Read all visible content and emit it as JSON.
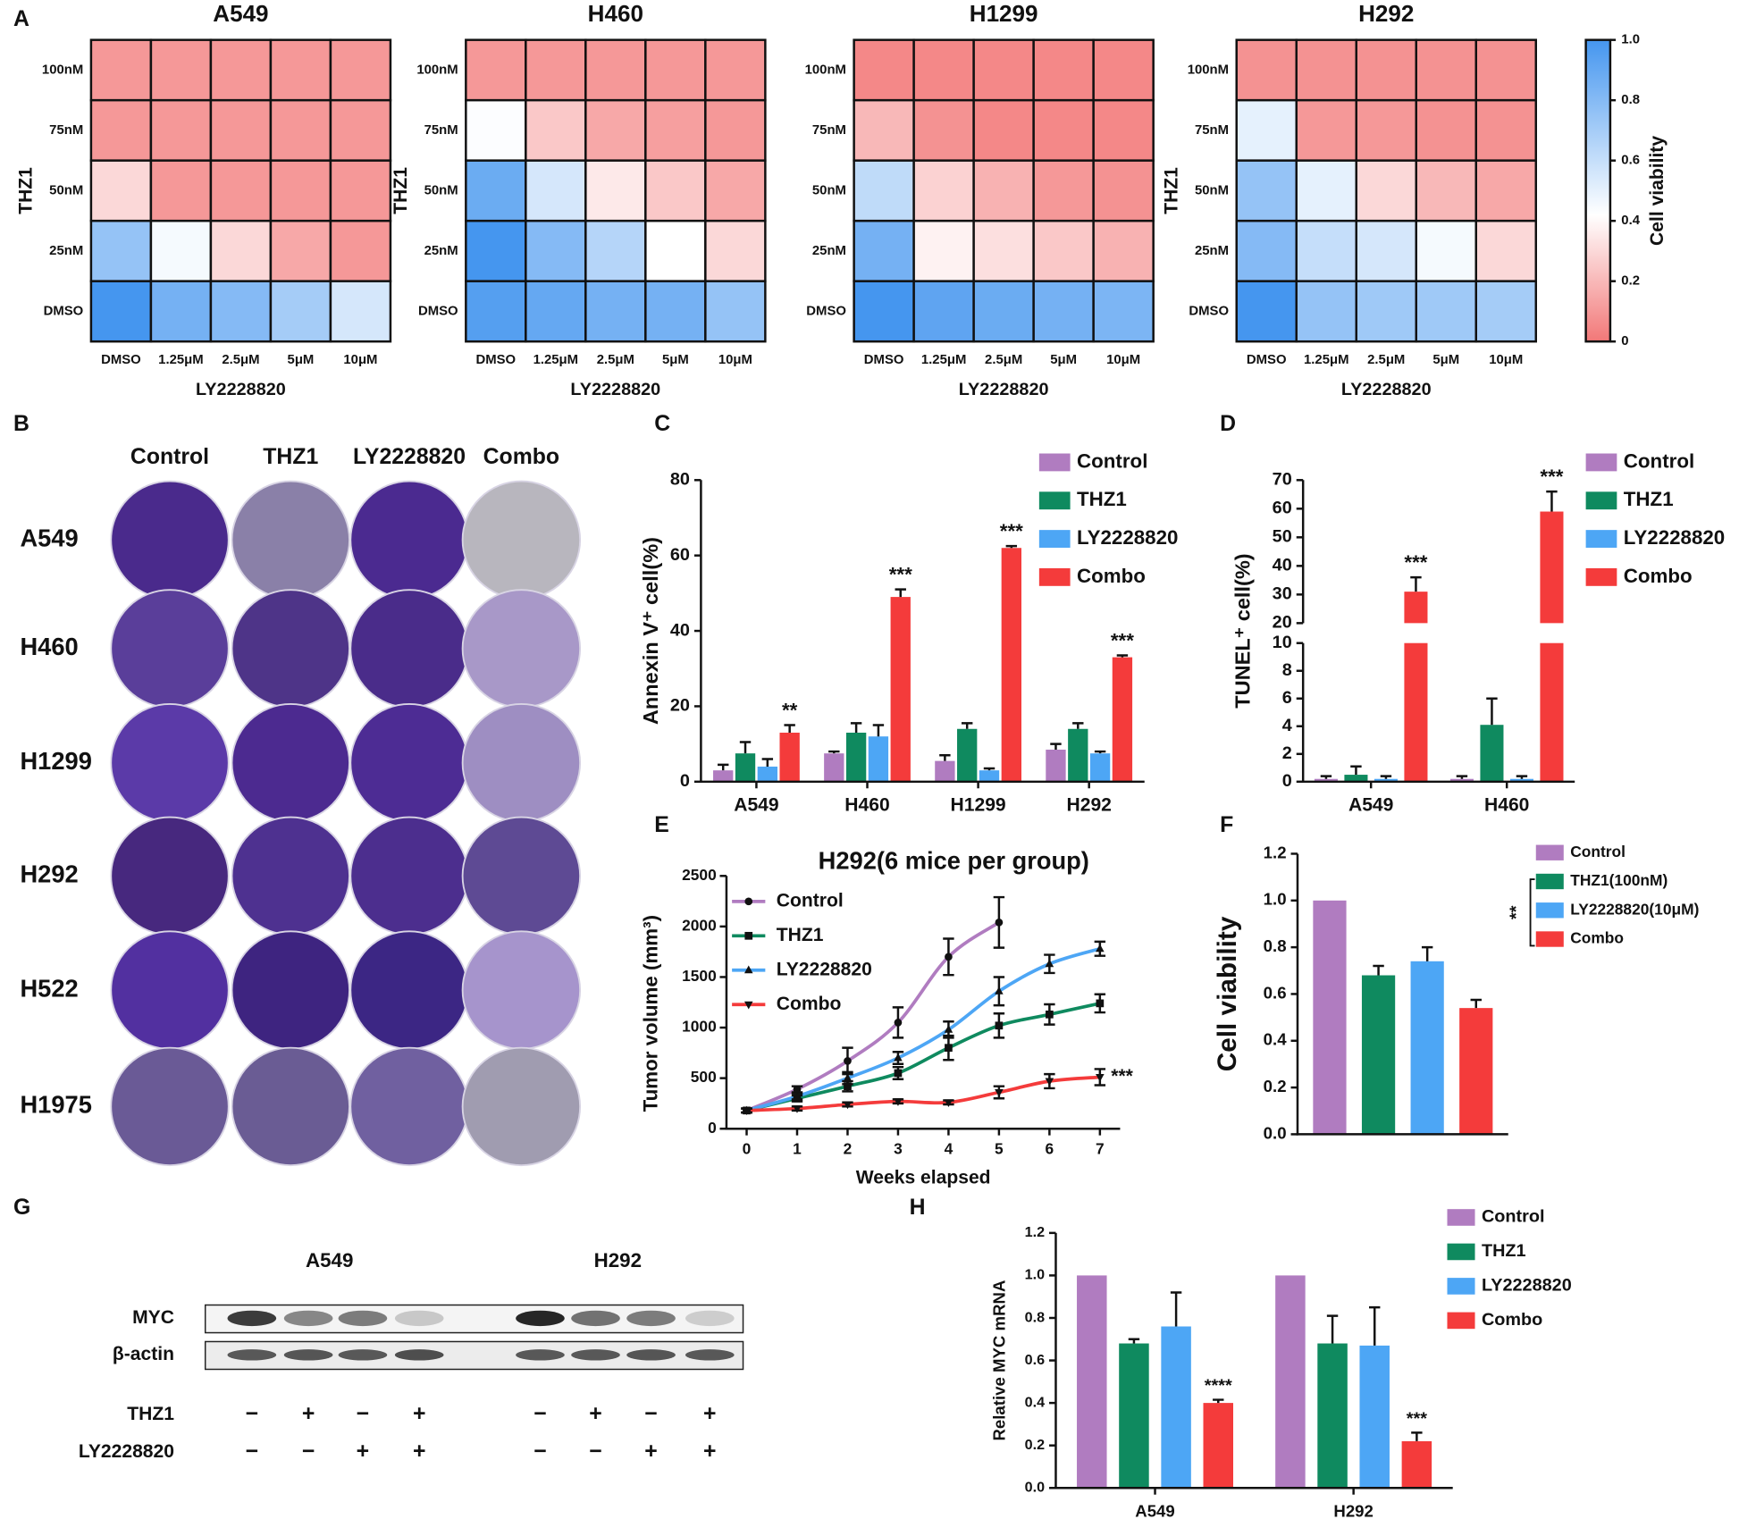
{
  "chart_data": [
    {
      "type": "heatmap",
      "panel": "A",
      "title": "A549",
      "x_categories": [
        "DMSO",
        "1.25μM",
        "2.5μM",
        "5μM",
        "10μM"
      ],
      "y_categories": [
        "100nM",
        "75nM",
        "50nM",
        "25nM",
        "DMSO"
      ],
      "xlabel": "LY2228820",
      "ylabel": "THZ1",
      "values": [
        [
          0.1,
          0.1,
          0.1,
          0.1,
          0.1
        ],
        [
          0.1,
          0.1,
          0.1,
          0.1,
          0.1
        ],
        [
          0.3,
          0.1,
          0.1,
          0.1,
          0.1
        ],
        [
          0.75,
          0.45,
          0.3,
          0.15,
          0.1
        ],
        [
          1.0,
          0.85,
          0.8,
          0.7,
          0.55
        ]
      ]
    },
    {
      "type": "heatmap",
      "title": "H460",
      "x_categories": [
        "DMSO",
        "1.25μM",
        "2.5μM",
        "5μM",
        "10μM"
      ],
      "y_categories": [
        "100nM",
        "75nM",
        "50nM",
        "25nM",
        "DMSO"
      ],
      "xlabel": "LY2228820",
      "ylabel": "THZ1",
      "values": [
        [
          0.1,
          0.1,
          0.1,
          0.1,
          0.1
        ],
        [
          0.43,
          0.25,
          0.15,
          0.12,
          0.1
        ],
        [
          0.88,
          0.55,
          0.35,
          0.25,
          0.15
        ],
        [
          1.0,
          0.8,
          0.65,
          0.42,
          0.3
        ],
        [
          0.95,
          0.9,
          0.85,
          0.85,
          0.75
        ]
      ]
    },
    {
      "type": "heatmap",
      "title": "H1299",
      "x_categories": [
        "DMSO",
        "1.25μM",
        "2.5μM",
        "5μM",
        "10μM"
      ],
      "y_categories": [
        "100nM",
        "75nM",
        "50nM",
        "25nM",
        "DMSO"
      ],
      "xlabel": "LY2228820",
      "values": [
        [
          0.05,
          0.05,
          0.05,
          0.05,
          0.05
        ],
        [
          0.2,
          0.08,
          0.05,
          0.05,
          0.05
        ],
        [
          0.62,
          0.28,
          0.18,
          0.1,
          0.08
        ],
        [
          0.85,
          0.38,
          0.32,
          0.25,
          0.18
        ],
        [
          1.0,
          0.92,
          0.88,
          0.85,
          0.83
        ]
      ]
    },
    {
      "type": "heatmap",
      "title": "H292",
      "x_categories": [
        "DMSO",
        "1.25μM",
        "2.5μM",
        "5μM",
        "10μM"
      ],
      "y_categories": [
        "100nM",
        "75nM",
        "50nM",
        "25nM",
        "DMSO"
      ],
      "xlabel": "LY2228820",
      "ylabel": "THZ1",
      "values": [
        [
          0.08,
          0.08,
          0.08,
          0.08,
          0.08
        ],
        [
          0.5,
          0.1,
          0.1,
          0.08,
          0.08
        ],
        [
          0.75,
          0.5,
          0.3,
          0.2,
          0.15
        ],
        [
          0.8,
          0.6,
          0.55,
          0.45,
          0.3
        ],
        [
          1.0,
          0.75,
          0.72,
          0.72,
          0.7
        ]
      ]
    },
    {
      "type": "bar",
      "panel": "C",
      "ylabel": "Annexin V⁺ cell(%)",
      "categories": [
        "A549",
        "H460",
        "H1299",
        "H292"
      ],
      "ylim": [
        0,
        80
      ],
      "yticks": [
        0,
        20,
        40,
        60,
        80
      ],
      "series": [
        {
          "name": "Control",
          "color": "#b07cc0",
          "values": [
            3,
            7.5,
            5.5,
            8.5
          ],
          "errors": [
            1.5,
            0.5,
            1.5,
            1.5
          ]
        },
        {
          "name": "THZ1",
          "color": "#0f8a5f",
          "values": [
            7.5,
            13,
            14,
            14
          ],
          "errors": [
            3,
            2.5,
            1.5,
            1.5
          ]
        },
        {
          "name": "LY2228820",
          "color": "#4da6f5",
          "values": [
            4,
            12,
            3,
            7.5
          ],
          "errors": [
            2,
            3,
            0.5,
            0.5
          ]
        },
        {
          "name": "Combo",
          "color": "#f43b3b",
          "values": [
            13,
            49,
            62,
            33
          ],
          "errors": [
            2,
            2,
            0.5,
            0.5
          ],
          "significance": [
            "**",
            "***",
            "***",
            "***"
          ]
        }
      ]
    },
    {
      "type": "bar",
      "panel": "D",
      "ylabel": "TUNEL⁺ cell(%)",
      "categories": [
        "A549",
        "H460"
      ],
      "ylim": [
        0,
        70
      ],
      "ybreak": [
        10,
        20
      ],
      "yticks": [
        0,
        2,
        4,
        6,
        8,
        10,
        20,
        30,
        40,
        50,
        60,
        70
      ],
      "series": [
        {
          "name": "Control",
          "color": "#b07cc0",
          "values": [
            0.2,
            0.2
          ],
          "errors": [
            0.2,
            0.2
          ]
        },
        {
          "name": "THZ1",
          "color": "#0f8a5f",
          "values": [
            0.5,
            4.1
          ],
          "errors": [
            0.6,
            1.9
          ]
        },
        {
          "name": "LY2228820",
          "color": "#4da6f5",
          "values": [
            0.2,
            0.2
          ],
          "errors": [
            0.2,
            0.2
          ]
        },
        {
          "name": "Combo",
          "color": "#f43b3b",
          "values": [
            31,
            59
          ],
          "errors": [
            5,
            7
          ],
          "significance": [
            "***",
            "***"
          ]
        }
      ]
    },
    {
      "type": "line",
      "panel": "E",
      "title": "H292(6 mice per group)",
      "xlabel": "Weeks elapsed",
      "ylabel": "Tumor volume (mm³)",
      "x": [
        0,
        1,
        2,
        3,
        4,
        5,
        6,
        7
      ],
      "xlim": [
        -0.4,
        7.4
      ],
      "xticks": [
        0,
        1,
        2,
        3,
        4,
        5,
        6,
        7
      ],
      "ylim": [
        0,
        2500
      ],
      "yticks": [
        0,
        500,
        1000,
        1500,
        2000,
        2500
      ],
      "annotation": "***",
      "series": [
        {
          "name": "Control",
          "color": "#b07cc0",
          "marker": "circle",
          "values": [
            180,
            390,
            670,
            1050,
            1700,
            2040,
            null,
            null
          ],
          "errors": [
            20,
            30,
            130,
            150,
            180,
            250,
            null,
            null
          ]
        },
        {
          "name": "THZ1",
          "color": "#0f8a5f",
          "marker": "square",
          "values": [
            180,
            300,
            420,
            550,
            800,
            1020,
            1130,
            1240
          ],
          "errors": [
            20,
            30,
            50,
            60,
            120,
            120,
            100,
            90
          ]
        },
        {
          "name": "LY2228820",
          "color": "#4da6f5",
          "marker": "triangle-up",
          "values": [
            180,
            320,
            500,
            700,
            980,
            1360,
            1630,
            1780
          ],
          "errors": [
            20,
            30,
            60,
            60,
            80,
            140,
            90,
            70
          ]
        },
        {
          "name": "Combo",
          "color": "#f43b3b",
          "marker": "triangle-down",
          "values": [
            180,
            200,
            240,
            270,
            260,
            360,
            470,
            510
          ],
          "errors": [
            20,
            20,
            20,
            20,
            20,
            60,
            70,
            80
          ]
        }
      ]
    },
    {
      "type": "bar",
      "panel": "F",
      "ylabel": "Cell viability",
      "annotation": "**",
      "ylim": [
        0,
        1.2
      ],
      "yticks": [
        {
          "value": 0,
          "label": "0.0"
        },
        0.2,
        0.4,
        0.6,
        0.8,
        {
          "value": 1,
          "label": "1.0"
        },
        1.2
      ],
      "series": [
        {
          "name": "Control",
          "color": "#b07cc0",
          "values": [
            1.0
          ]
        },
        {
          "name": "THZ1(100nM)",
          "color": "#0f8a5f",
          "values": [
            0.68
          ],
          "errors": [
            0.04
          ]
        },
        {
          "name": "LY2228820(10μM)",
          "color": "#4da6f5",
          "values": [
            0.74
          ],
          "errors": [
            0.06
          ]
        },
        {
          "name": "Combo",
          "color": "#f43b3b",
          "values": [
            0.54
          ],
          "errors": [
            0.035
          ]
        }
      ]
    },
    {
      "type": "bar",
      "panel": "H",
      "ylabel": "Relative MYC mRNA",
      "categories": [
        "A549",
        "H292"
      ],
      "ylim": [
        0,
        1.2
      ],
      "yticks": [
        {
          "value": 0,
          "label": "0.0"
        },
        0.2,
        0.4,
        0.6,
        0.8,
        {
          "value": 1,
          "label": "1.0"
        },
        1.2
      ],
      "series": [
        {
          "name": "Control",
          "color": "#b07cc0",
          "values": [
            1.0,
            1.0
          ]
        },
        {
          "name": "THZ1",
          "color": "#0f8a5f",
          "values": [
            0.68,
            0.68
          ],
          "errors": [
            0.02,
            0.13
          ]
        },
        {
          "name": "LY2228820",
          "color": "#4da6f5",
          "values": [
            0.76,
            0.67
          ],
          "errors": [
            0.16,
            0.18
          ]
        },
        {
          "name": "Combo",
          "color": "#f43b3b",
          "values": [
            0.4,
            0.22
          ],
          "errors": [
            0.015,
            0.04
          ],
          "significance": [
            "****",
            "***"
          ]
        }
      ]
    }
  ],
  "heatmap_colorbar": {
    "label": "Cell viability",
    "lim": [
      0,
      1
    ],
    "ticks": [
      0,
      0.2,
      0.4,
      0.6,
      0.8,
      {
        "value": 1,
        "label": "1.0"
      }
    ]
  },
  "colony_plates": {
    "panel": "B",
    "columns": [
      "Control",
      "THZ1",
      "LY2228820",
      "Combo"
    ],
    "rows": [
      "A549",
      "H460",
      "H1299",
      "H292",
      "H522",
      "H1975"
    ]
  },
  "western_blot": {
    "panel": "G",
    "cell_lines": [
      "A549",
      "H292"
    ],
    "proteins": [
      "MYC",
      "β-actin"
    ],
    "treatments": [
      {
        "name": "THZ1",
        "signs": [
          "−",
          "+",
          "−",
          "+",
          "−",
          "+",
          "−",
          "+"
        ]
      },
      {
        "name": "LY2228820",
        "signs": [
          "−",
          "−",
          "+",
          "+",
          "−",
          "−",
          "+",
          "+"
        ]
      }
    ]
  }
}
